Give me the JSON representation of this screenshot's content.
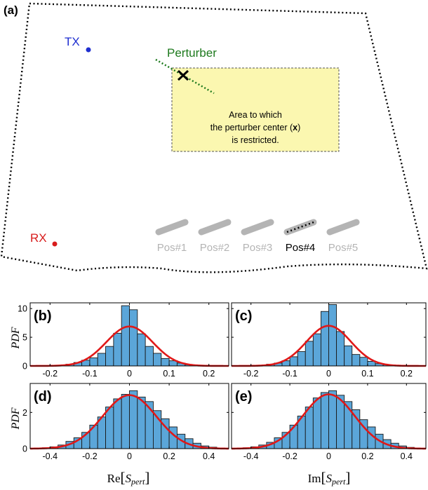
{
  "top_panel": {
    "label": "(a)",
    "tx_label": "TX",
    "rx_label": "RX",
    "perturber_label": "Perturber",
    "area_text_line1": "Area to which",
    "area_text_line2": "the perturber center (",
    "area_text_mark": "x",
    "area_text_line2_end": ")",
    "area_text_line3": "is restricted.",
    "positions": [
      {
        "label": "Pos#1",
        "active": false
      },
      {
        "label": "Pos#2",
        "active": false
      },
      {
        "label": "Pos#3",
        "active": false
      },
      {
        "label": "Pos#4",
        "active": true
      },
      {
        "label": "Pos#5",
        "active": false
      }
    ],
    "colors": {
      "tx": "#1f2fd0",
      "rx": "#d81c1c",
      "perturber": "#1e7a1e",
      "area_fill": "#fbf7b0",
      "inactive": "#b4b4b4",
      "active": "#000000"
    }
  },
  "y_axis_title": "PDF",
  "x_axis_titles": {
    "left_prefix": "Re",
    "right_prefix": "Im",
    "var_main": "S",
    "var_sub": "pert"
  },
  "chart_data": [
    {
      "id": "b",
      "label": "(b)",
      "type": "bar+line",
      "xlim": [
        -0.25,
        0.25
      ],
      "ylim": [
        0,
        11
      ],
      "xticks": [
        -0.2,
        -0.1,
        0,
        0.1,
        0.2
      ],
      "xtick_labels": [
        "-0.2",
        "-0.1",
        "0",
        "0.1",
        "0.2"
      ],
      "yticks": [
        0,
        5,
        10
      ],
      "ytick_labels": [
        "0",
        "5",
        "10"
      ],
      "bin_edges": [
        -0.18,
        -0.16,
        -0.14,
        -0.12,
        -0.1,
        -0.08,
        -0.06,
        -0.04,
        -0.02,
        0,
        0.02,
        0.04,
        0.06,
        0.08,
        0.1,
        0.12,
        0.14,
        0.16
      ],
      "bin_values": [
        0.1,
        0.3,
        0.6,
        1.0,
        1.4,
        2.2,
        3.4,
        5.7,
        10.5,
        9.8,
        5.6,
        3.4,
        2.2,
        1.3,
        0.9,
        0.5,
        0.2
      ],
      "gauss_mu": 0,
      "gauss_sigma": 0.058,
      "bar_color": "#5ba6d9",
      "line_color": "#e01818"
    },
    {
      "id": "c",
      "label": "(c)",
      "type": "bar+line",
      "xlim": [
        -0.25,
        0.25
      ],
      "ylim": [
        0,
        11
      ],
      "xticks": [
        -0.2,
        -0.1,
        0,
        0.1,
        0.2
      ],
      "xtick_labels": [
        "-0.2",
        "-0.1",
        "0",
        "0.1",
        "0.2"
      ],
      "yticks": [
        0,
        5,
        10
      ],
      "ytick_labels": [
        "0",
        "5",
        "10"
      ],
      "bin_edges": [
        -0.18,
        -0.16,
        -0.14,
        -0.12,
        -0.1,
        -0.08,
        -0.06,
        -0.04,
        -0.02,
        0,
        0.02,
        0.04,
        0.06,
        0.08,
        0.1,
        0.12,
        0.14,
        0.16
      ],
      "bin_values": [
        0.1,
        0.3,
        0.5,
        0.9,
        1.6,
        2.5,
        4.3,
        5.6,
        9.5,
        10.7,
        6.0,
        3.5,
        2.0,
        1.5,
        0.8,
        0.4,
        0.2
      ],
      "gauss_mu": 0,
      "gauss_sigma": 0.057,
      "bar_color": "#5ba6d9",
      "line_color": "#e01818"
    },
    {
      "id": "d",
      "label": "(d)",
      "type": "bar+line",
      "xlim": [
        -0.5,
        0.5
      ],
      "ylim": [
        0,
        3.6
      ],
      "xticks": [
        -0.4,
        -0.2,
        0,
        0.2,
        0.4
      ],
      "xtick_labels": [
        "-0.4",
        "-0.2",
        "0",
        "0.2",
        "0.4"
      ],
      "yticks": [
        0,
        2
      ],
      "ytick_labels": [
        "0",
        "2"
      ],
      "bin_edges": [
        -0.44,
        -0.4,
        -0.36,
        -0.32,
        -0.28,
        -0.24,
        -0.2,
        -0.16,
        -0.12,
        -0.08,
        -0.04,
        0,
        0.04,
        0.08,
        0.12,
        0.16,
        0.2,
        0.24,
        0.28,
        0.32,
        0.36,
        0.4,
        0.44
      ],
      "bin_values": [
        0.05,
        0.1,
        0.2,
        0.4,
        0.6,
        0.9,
        1.3,
        1.75,
        2.3,
        2.75,
        3.0,
        3.2,
        2.85,
        2.6,
        2.1,
        1.65,
        1.2,
        0.8,
        0.55,
        0.3,
        0.15,
        0.08
      ],
      "gauss_mu": 0,
      "gauss_sigma": 0.135,
      "bar_color": "#5ba6d9",
      "line_color": "#e01818"
    },
    {
      "id": "e",
      "label": "(e)",
      "type": "bar+line",
      "xlim": [
        -0.5,
        0.5
      ],
      "ylim": [
        0,
        3.6
      ],
      "xticks": [
        -0.4,
        -0.2,
        0,
        0.2,
        0.4
      ],
      "xtick_labels": [
        "-0.4",
        "-0.2",
        "0",
        "0.2",
        "0.4"
      ],
      "yticks": [
        0,
        2
      ],
      "ytick_labels": [
        "0",
        "2"
      ],
      "bin_edges": [
        -0.44,
        -0.4,
        -0.36,
        -0.32,
        -0.28,
        -0.24,
        -0.2,
        -0.16,
        -0.12,
        -0.08,
        -0.04,
        0,
        0.04,
        0.08,
        0.12,
        0.16,
        0.2,
        0.24,
        0.28,
        0.32,
        0.36,
        0.4,
        0.44
      ],
      "bin_values": [
        0.05,
        0.1,
        0.2,
        0.35,
        0.6,
        0.9,
        1.3,
        1.8,
        2.3,
        2.8,
        3.1,
        3.2,
        2.95,
        2.6,
        2.15,
        1.6,
        1.2,
        0.8,
        0.5,
        0.3,
        0.15,
        0.07
      ],
      "gauss_mu": 0,
      "gauss_sigma": 0.133,
      "bar_color": "#5ba6d9",
      "line_color": "#e01818"
    }
  ]
}
